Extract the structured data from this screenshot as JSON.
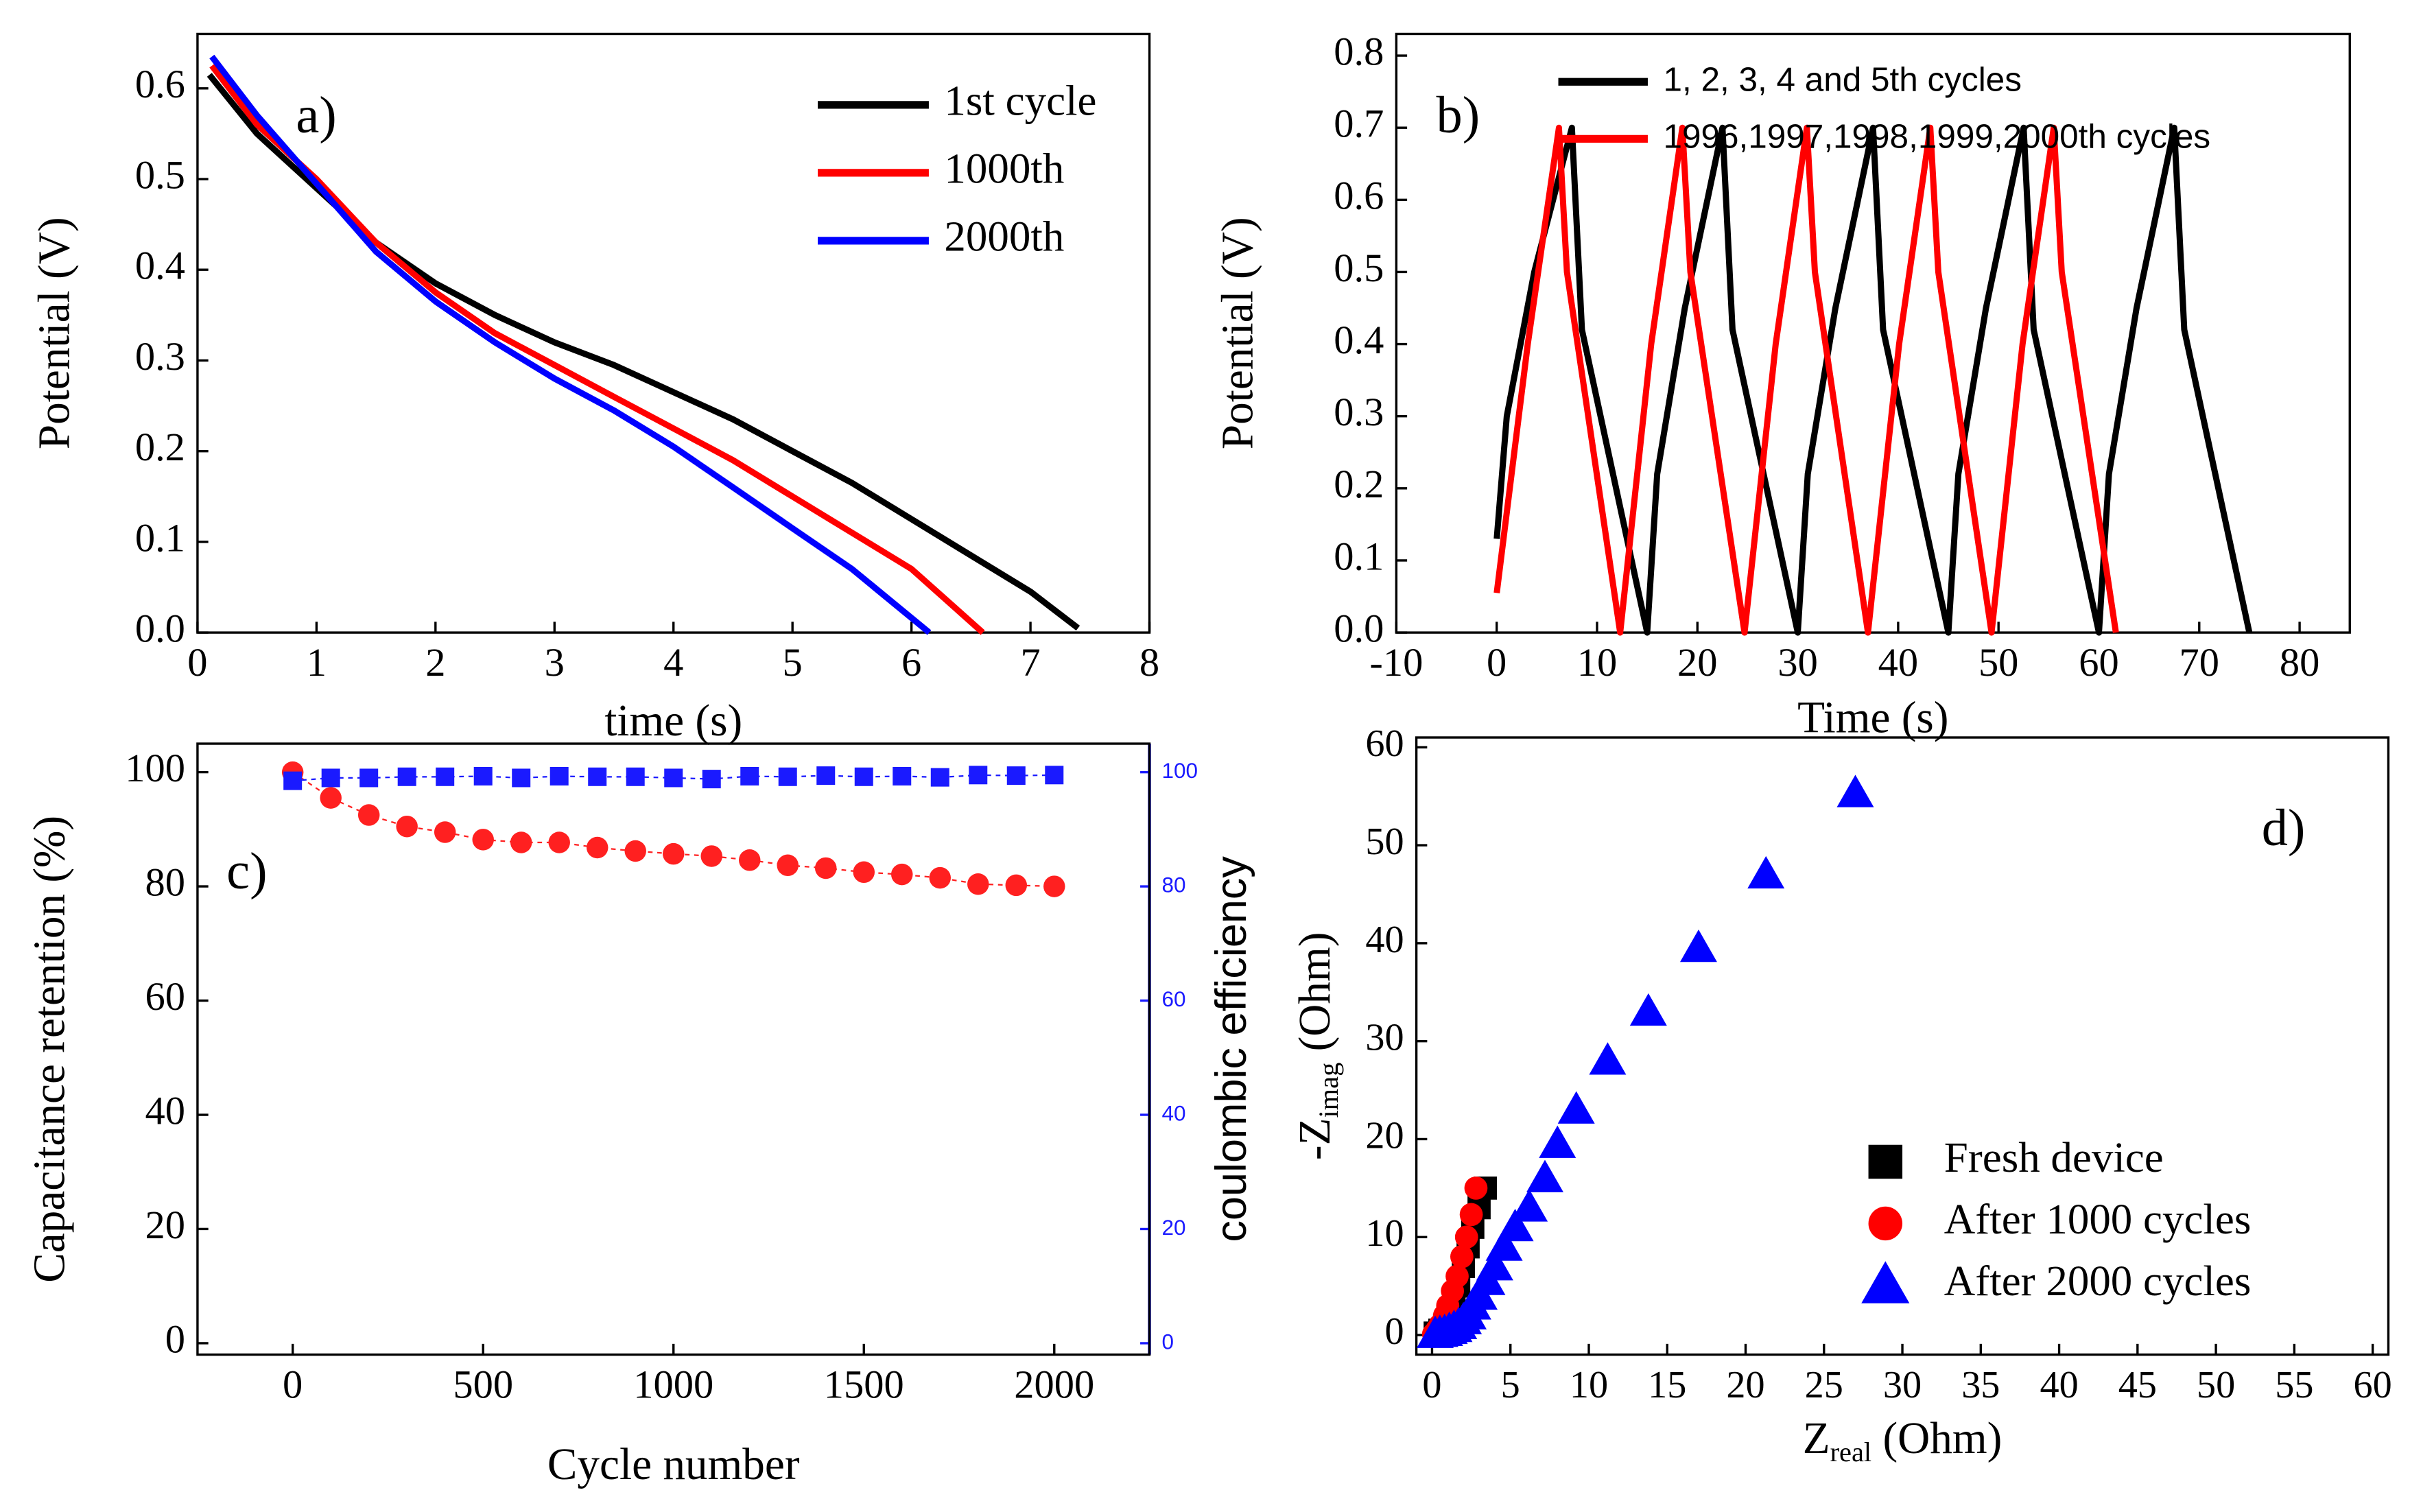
{
  "chart_data": [
    {
      "type": "line",
      "annotation": "a)",
      "x_label": "time (s)",
      "y_label": "Potential (V)",
      "xlim": [
        0,
        8
      ],
      "xticks": [
        0,
        1,
        2,
        3,
        4,
        5,
        6,
        7,
        8
      ],
      "ylim": [
        0,
        0.66
      ],
      "yticks": [
        {
          "value": 0,
          "label": "0.0"
        },
        0.1,
        0.2,
        0.3,
        0.4,
        0.5,
        0.6
      ],
      "legend": "upper right",
      "series": [
        {
          "name": "1st cycle",
          "color": "#000000",
          "x": [
            0.1,
            0.5,
            1,
            1.5,
            2,
            2.5,
            3,
            3.5,
            4,
            4.5,
            5,
            5.5,
            6,
            6.5,
            7,
            7.4
          ],
          "values": [
            0.615,
            0.55,
            0.49,
            0.43,
            0.385,
            0.35,
            0.32,
            0.295,
            0.265,
            0.235,
            0.2,
            0.165,
            0.125,
            0.085,
            0.045,
            0.005
          ]
        },
        {
          "name": "1000th",
          "color": "#ff0000",
          "x": [
            0.12,
            0.5,
            1,
            1.5,
            2,
            2.5,
            3,
            3.5,
            4,
            4.5,
            5,
            5.5,
            6,
            6.6
          ],
          "values": [
            0.625,
            0.56,
            0.5,
            0.43,
            0.375,
            0.33,
            0.295,
            0.26,
            0.225,
            0.19,
            0.15,
            0.11,
            0.07,
            0.0
          ]
        },
        {
          "name": "2000th",
          "color": "#0000ff",
          "x": [
            0.12,
            0.5,
            1,
            1.5,
            2,
            2.5,
            3,
            3.5,
            4,
            4.5,
            5,
            5.5,
            6.15
          ],
          "values": [
            0.635,
            0.57,
            0.495,
            0.42,
            0.365,
            0.32,
            0.28,
            0.245,
            0.205,
            0.16,
            0.115,
            0.07,
            0.0
          ]
        }
      ]
    },
    {
      "type": "line",
      "annotation": "b)",
      "x_label": "Time (s)",
      "y_label": "Potential (V)",
      "xlim": [
        -10,
        85
      ],
      "xticks": [
        -10,
        0,
        10,
        20,
        30,
        40,
        50,
        60,
        70,
        80
      ],
      "ylim": [
        0,
        0.83
      ],
      "yticks": [
        {
          "value": 0,
          "label": "0.0"
        },
        0.1,
        0.2,
        0.3,
        0.4,
        0.5,
        0.6,
        0.7,
        0.8
      ],
      "legend": "upper left",
      "series": [
        {
          "name": "1, 2, 3, 4 and 5th cycles",
          "color": "#000000",
          "x": [
            0,
            1,
            3.75,
            7.5,
            8.5,
            15,
            16,
            18.75,
            22.5,
            23.5,
            30,
            31,
            33.75,
            37.5,
            38.5,
            45,
            46,
            48.75,
            52.5,
            53.5,
            60,
            61,
            63.75,
            67.5,
            68.5,
            75
          ],
          "values": [
            0.13,
            0.3,
            0.5,
            0.7,
            0.42,
            0,
            0.22,
            0.45,
            0.7,
            0.42,
            0,
            0.22,
            0.45,
            0.7,
            0.42,
            0,
            0.22,
            0.45,
            0.7,
            0.42,
            0,
            0.22,
            0.45,
            0.7,
            0.42,
            0
          ]
        },
        {
          "name": "1996,1997,1998,1999,2000th cycles",
          "color": "#ff0000",
          "x": [
            0,
            3.1,
            6.2,
            7,
            12.3,
            15.4,
            18.5,
            19.3,
            24.7,
            27.8,
            30.9,
            31.7,
            37,
            40.1,
            43.2,
            44,
            49.3,
            52.4,
            55.5,
            56.3,
            61.7
          ],
          "values": [
            0.055,
            0.4,
            0.7,
            0.5,
            0,
            0.4,
            0.7,
            0.5,
            0,
            0.4,
            0.7,
            0.5,
            0,
            0.4,
            0.7,
            0.5,
            0,
            0.4,
            0.7,
            0.5,
            0
          ]
        }
      ]
    },
    {
      "type": "line",
      "annotation": "c)",
      "x_label": "Cycle number",
      "y_label": "Capacitance retention (%)",
      "y2_label": "coulombic efficiency",
      "xlim": [
        -250,
        2250
      ],
      "xticks": [
        0,
        500,
        1000,
        1500,
        2000
      ],
      "ylim": [
        -2,
        105
      ],
      "yticks": [
        0,
        20,
        40,
        60,
        80,
        100
      ],
      "y2lim": [
        -2,
        105
      ],
      "y2ticks": [
        0,
        20,
        40,
        60,
        80,
        100
      ],
      "x": [
        0,
        100,
        200,
        300,
        400,
        500,
        600,
        700,
        800,
        900,
        1000,
        1100,
        1200,
        1300,
        1400,
        1500,
        1600,
        1700,
        1800,
        1900,
        2000
      ],
      "series": [
        {
          "color": "#ff2020",
          "marker": "circle",
          "values": [
            100,
            95.5,
            92.5,
            90.5,
            89.5,
            88.2,
            87.7,
            87.7,
            86.8,
            86.2,
            85.7,
            85.3,
            84.6,
            83.7,
            83.2,
            82.5,
            82.1,
            81.5,
            80.4,
            80.2,
            80
          ]
        },
        {
          "color": "#1a1aff",
          "marker": "square",
          "axis": "y2",
          "values": [
            98.5,
            99,
            99,
            99.2,
            99.2,
            99.3,
            99,
            99.3,
            99.2,
            99.2,
            99,
            98.8,
            99.3,
            99.2,
            99.4,
            99.2,
            99.3,
            99.1,
            99.5,
            99.4,
            99.5
          ]
        }
      ]
    },
    {
      "type": "scatter",
      "annotation": "d)",
      "x_label": {
        "text": "Z",
        "sub": "real",
        "rest": " (Ohm)"
      },
      "y_label": {
        "text": "-Z",
        "sub": "imag",
        "rest": " (Ohm)"
      },
      "xlim": [
        -1,
        61
      ],
      "xticks": [
        0,
        5,
        10,
        15,
        20,
        25,
        30,
        35,
        40,
        45,
        50,
        55,
        60
      ],
      "ylim": [
        -2,
        61
      ],
      "yticks": [
        0,
        10,
        20,
        30,
        40,
        50,
        60
      ],
      "legend": "lower right",
      "series": [
        {
          "name": "Fresh device",
          "color": "#000000",
          "marker": "square",
          "x": [
            0.2,
            0.5,
            0.8,
            1.1,
            1.4,
            1.7,
            2,
            2.3,
            2.6,
            3,
            3.4
          ],
          "values": [
            0.2,
            0.5,
            1,
            2,
            3.5,
            5,
            7,
            9,
            11,
            13,
            15
          ]
        },
        {
          "name": "After 1000 cycles",
          "color": "#ff0000",
          "marker": "circle",
          "x": [
            0.1,
            0.3,
            0.5,
            0.8,
            1,
            1.3,
            1.6,
            1.9,
            2.2,
            2.5,
            2.8
          ],
          "values": [
            0.1,
            0.5,
            1,
            2,
            3,
            4.5,
            6,
            8,
            10,
            12.3,
            15
          ]
        },
        {
          "name": "After 2000 cycles",
          "color": "#0000ff",
          "marker": "triangle",
          "x": [
            0.2,
            0.5,
            0.8,
            1.1,
            1.4,
            1.7,
            2,
            2.3,
            2.6,
            3,
            3.5,
            4,
            4.6,
            5.3,
            6.2,
            7.2,
            8,
            9.2,
            11.2,
            13.8,
            17,
            21.3,
            27
          ],
          "values": [
            0.1,
            0.2,
            0.3,
            0.5,
            0.7,
            1,
            1.5,
            2,
            3,
            4,
            5.5,
            7,
            9,
            11,
            13,
            16,
            19.5,
            23,
            28,
            33,
            39.5,
            47,
            55.3
          ]
        }
      ]
    }
  ]
}
